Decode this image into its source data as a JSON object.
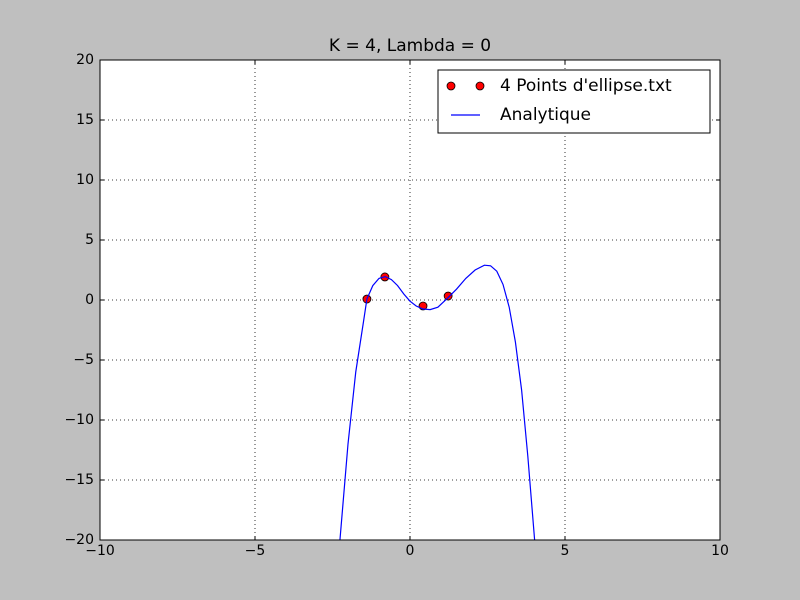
{
  "chart_data": {
    "type": "line",
    "title": "K = 4, Lambda = 0",
    "series": [
      {
        "name": "4 Points d'ellipse.txt",
        "style": "markers",
        "color": "#ff0000",
        "x": [
          -1.39,
          -0.81,
          0.42,
          1.23
        ],
        "values": [
          0.08,
          1.92,
          -0.5,
          0.33
        ]
      },
      {
        "name": "Analytique",
        "style": "line",
        "color": "#0000ff",
        "x": [
          -2.26,
          -2.0,
          -1.75,
          -1.5,
          -1.39,
          -1.2,
          -1.0,
          -0.8,
          -0.6,
          -0.4,
          -0.2,
          0.0,
          0.2,
          0.42,
          0.65,
          0.9,
          1.23,
          1.5,
          1.8,
          2.1,
          2.4,
          2.6,
          2.8,
          3.0,
          3.2,
          3.4,
          3.6,
          3.8,
          4.02
        ],
        "values": [
          -20,
          -12,
          -6,
          -1.8,
          0.08,
          1.2,
          1.8,
          1.95,
          1.7,
          1.2,
          0.5,
          -0.1,
          -0.5,
          -0.75,
          -0.8,
          -0.6,
          0.2,
          0.9,
          1.8,
          2.5,
          2.9,
          2.85,
          2.4,
          1.3,
          -0.6,
          -3.5,
          -7.5,
          -13,
          -20
        ]
      }
    ],
    "xlim": [
      -10,
      10
    ],
    "ylim": [
      -20,
      20
    ],
    "xticks": [
      {
        "value": -10,
        "label": "−10"
      },
      {
        "value": -5,
        "label": "−5"
      },
      0,
      5,
      10
    ],
    "yticks": [
      {
        "value": -20,
        "label": "−20"
      },
      {
        "value": -15,
        "label": "−15"
      },
      {
        "value": -10,
        "label": "−10"
      },
      {
        "value": -5,
        "label": "−5"
      },
      0,
      5,
      10,
      15,
      20
    ],
    "grid": true,
    "legend": "upper-right"
  }
}
